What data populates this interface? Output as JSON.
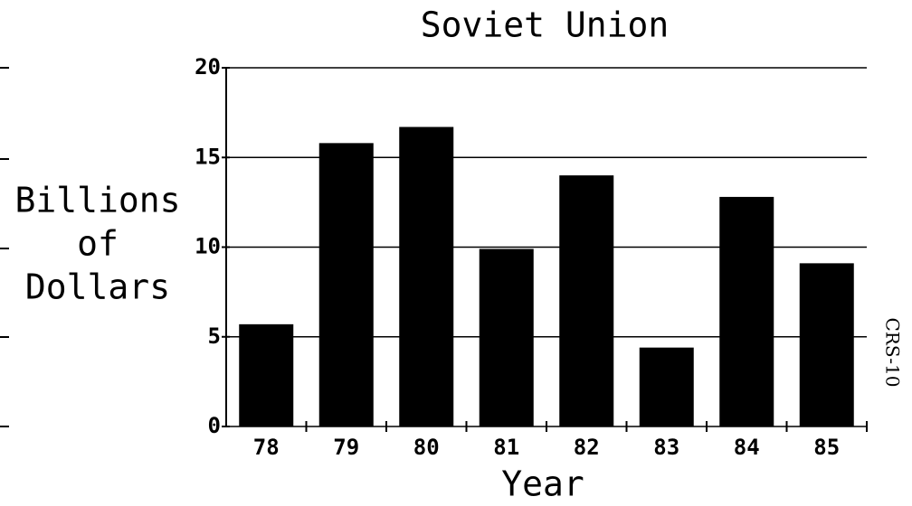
{
  "chart_data": {
    "type": "bar",
    "title": "Soviet Union",
    "y_label": [
      "Billions",
      "of",
      "Dollars"
    ],
    "x_label": "Year",
    "annotation": "CRS-10",
    "categories": [
      "78",
      "79",
      "80",
      "81",
      "82",
      "83",
      "84",
      "85"
    ],
    "values": [
      5.7,
      15.8,
      16.7,
      9.9,
      14.0,
      4.4,
      12.8,
      9.1
    ],
    "color": "#000000",
    "ylim": [
      0,
      20
    ],
    "yticks": [
      0,
      5,
      10,
      15,
      20
    ],
    "grid": true
  }
}
